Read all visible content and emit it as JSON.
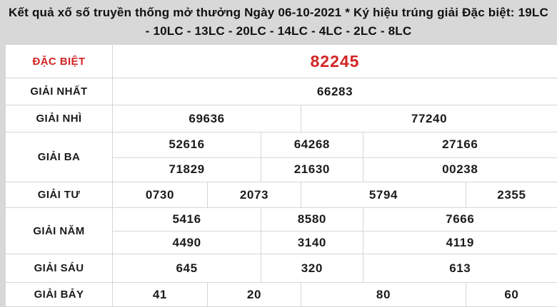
{
  "page": {
    "header_line1": "Kết quả xố số truyền thống mở thưởng Ngày 06-10-2021 * Ký hiệu trúng giải Đặc biệt: 19LC",
    "header_line2": "- 10LC - 13LC - 20LC - 14LC - 4LC - 2LC - 8LC"
  },
  "results_table": {
    "rows": [
      {
        "key": "dac-biet",
        "label": "ĐẶC BIỆT",
        "highlight": true,
        "lines": [
          [
            "82245"
          ]
        ]
      },
      {
        "key": "giai-nhat",
        "label": "GIẢI NHẤT",
        "highlight": false,
        "lines": [
          [
            "66283"
          ]
        ]
      },
      {
        "key": "giai-nhi",
        "label": "GIẢI NHÌ",
        "highlight": false,
        "lines": [
          [
            "69636",
            "77240"
          ]
        ]
      },
      {
        "key": "giai-ba",
        "label": "GIẢI BA",
        "highlight": false,
        "lines": [
          [
            "52616",
            "64268",
            "27166"
          ],
          [
            "71829",
            "21630",
            "00238"
          ]
        ]
      },
      {
        "key": "giai-tu",
        "label": "GIẢI TƯ",
        "highlight": false,
        "lines": [
          [
            "0730",
            "2073",
            "5794",
            "2355"
          ]
        ]
      },
      {
        "key": "giai-nam",
        "label": "GIẢI NĂM",
        "highlight": false,
        "lines": [
          [
            "5416",
            "8580",
            "7666"
          ],
          [
            "4490",
            "3140",
            "4119"
          ]
        ]
      },
      {
        "key": "giai-sau",
        "label": "GIẢI SÁU",
        "highlight": false,
        "lines": [
          [
            "645",
            "320",
            "613"
          ]
        ]
      },
      {
        "key": "giai-bay",
        "label": "GIẢI BẢY",
        "highlight": false,
        "lines": [
          [
            "41",
            "20",
            "80",
            "60"
          ]
        ]
      }
    ]
  },
  "colors": {
    "accent_red": "#d32525",
    "header_bg": "#d8d8d8",
    "row_bg": "#ffffff",
    "border": "#d6d6d6",
    "text": "#1b1b1b"
  }
}
